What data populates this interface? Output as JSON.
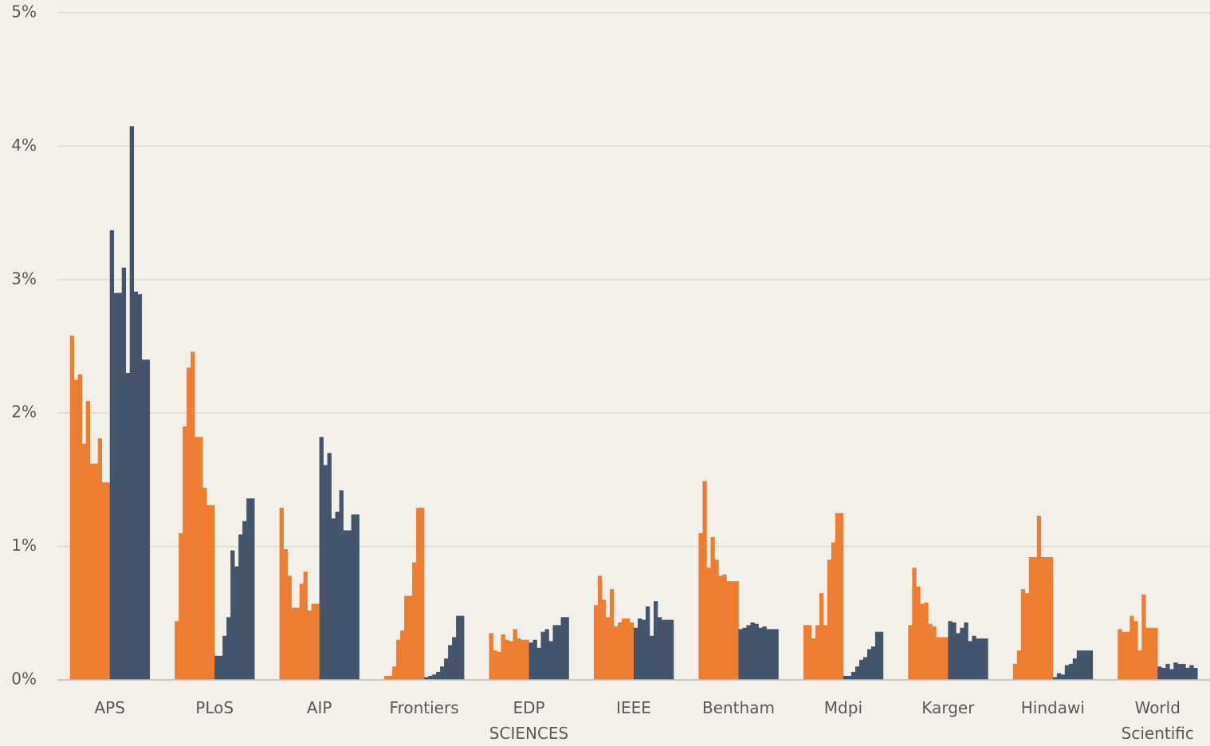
{
  "chart_data": {
    "type": "grouped-bar",
    "categories": [
      "APS",
      "PLoS",
      "AIP",
      "Frontiers",
      "EDP SCIENCES",
      "IEEE",
      "Bentham",
      "Mdpi",
      "Karger",
      "Hindawi",
      "World Scientific"
    ],
    "series": [
      {
        "color": "#ed7d31",
        "values": [
          [
            2.58,
            2.25,
            2.29,
            1.77,
            2.09,
            1.62,
            1.62,
            1.81,
            1.48,
            1.48
          ],
          [
            0.44,
            1.1,
            1.9,
            2.34,
            2.46,
            1.82,
            1.82,
            1.44,
            1.31,
            1.31
          ],
          [
            1.29,
            0.98,
            0.78,
            0.54,
            0.54,
            0.72,
            0.81,
            0.52,
            0.57,
            0.57
          ],
          [
            0.03,
            0.03,
            0.1,
            0.3,
            0.37,
            0.63,
            0.63,
            0.88,
            1.29,
            1.29
          ],
          [
            0.35,
            0.22,
            0.21,
            0.34,
            0.3,
            0.29,
            0.38,
            0.31,
            0.3,
            0.3
          ],
          [
            0.56,
            0.78,
            0.6,
            0.47,
            0.68,
            0.4,
            0.43,
            0.46,
            0.46,
            0.43
          ],
          [
            1.1,
            1.49,
            0.84,
            1.07,
            0.9,
            0.78,
            0.79,
            0.74,
            0.74,
            0.74
          ],
          [
            0.41,
            0.41,
            0.31,
            0.41,
            0.65,
            0.41,
            0.9,
            1.03,
            1.25,
            1.25
          ],
          [
            0.41,
            0.84,
            0.7,
            0.57,
            0.58,
            0.42,
            0.4,
            0.32,
            0.32,
            0.32
          ],
          [
            0.12,
            0.22,
            0.68,
            0.65,
            0.92,
            0.92,
            1.23,
            0.92,
            0.92,
            0.92
          ],
          [
            0.38,
            0.36,
            0.36,
            0.48,
            0.44,
            0.22,
            0.64,
            0.39,
            0.39,
            0.39
          ]
        ]
      },
      {
        "color": "#44546a",
        "values": [
          [
            3.37,
            2.9,
            2.9,
            3.09,
            2.3,
            4.15,
            2.91,
            2.89,
            2.4,
            2.4
          ],
          [
            0.18,
            0.18,
            0.33,
            0.47,
            0.97,
            0.85,
            1.09,
            1.19,
            1.36,
            1.36
          ],
          [
            1.82,
            1.61,
            1.7,
            1.21,
            1.26,
            1.42,
            1.12,
            1.12,
            1.24,
            1.24
          ],
          [
            0.02,
            0.03,
            0.04,
            0.06,
            0.1,
            0.16,
            0.26,
            0.32,
            0.48,
            0.48
          ],
          [
            0.28,
            0.3,
            0.24,
            0.36,
            0.38,
            0.29,
            0.41,
            0.41,
            0.47,
            0.47
          ],
          [
            0.39,
            0.46,
            0.45,
            0.55,
            0.33,
            0.59,
            0.47,
            0.45,
            0.45,
            0.45
          ],
          [
            0.38,
            0.39,
            0.41,
            0.43,
            0.42,
            0.39,
            0.4,
            0.38,
            0.38,
            0.38
          ],
          [
            0.03,
            0.03,
            0.06,
            0.1,
            0.15,
            0.17,
            0.23,
            0.25,
            0.36,
            0.36
          ],
          [
            0.44,
            0.43,
            0.35,
            0.39,
            0.43,
            0.29,
            0.33,
            0.31,
            0.31,
            0.31
          ],
          [
            0.02,
            0.05,
            0.04,
            0.11,
            0.12,
            0.16,
            0.22,
            0.22,
            0.22,
            0.22
          ],
          [
            0.1,
            0.09,
            0.12,
            0.08,
            0.13,
            0.12,
            0.12,
            0.09,
            0.11,
            0.09
          ]
        ]
      }
    ],
    "ylim": [
      0,
      5
    ],
    "yticks": [
      {
        "value": 0,
        "label": "0%"
      },
      {
        "value": 1,
        "label": "1%"
      },
      {
        "value": 2,
        "label": "2%"
      },
      {
        "value": 3,
        "label": "3%"
      },
      {
        "value": 4,
        "label": "4%"
      },
      {
        "value": 5,
        "label": "5%"
      }
    ],
    "grid": true
  }
}
